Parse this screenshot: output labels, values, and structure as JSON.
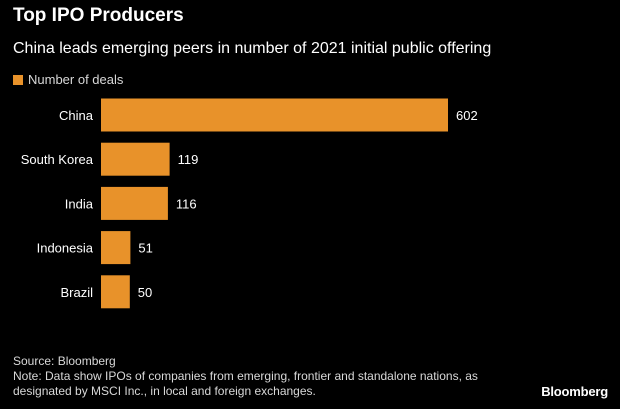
{
  "header": {
    "title": "Top IPO Producers",
    "subtitle": "China leads emerging peers in number of 2021 initial public offering"
  },
  "legend": {
    "label": "Number of deals"
  },
  "footer": {
    "source": "Source: Bloomberg",
    "note": "Note: Data show IPOs of companies from emerging, frontier and standalone nations, as designated by MSCI Inc., in local and foreign exchanges.",
    "brand": "Bloomberg"
  },
  "colors": {
    "bar": "#e8922a",
    "background": "#000000",
    "text": "#ffffff"
  },
  "chart_data": {
    "type": "bar",
    "orientation": "horizontal",
    "title": "Top IPO Producers",
    "subtitle": "China leads emerging peers in number of 2021 initial public offering",
    "categories": [
      "China",
      "South Korea",
      "India",
      "Indonesia",
      "Brazil"
    ],
    "series": [
      {
        "name": "Number of deals",
        "values": [
          602,
          119,
          116,
          51,
          50
        ]
      }
    ],
    "xlim": [
      0,
      602
    ],
    "grid": false,
    "legend_position": "top-left"
  }
}
